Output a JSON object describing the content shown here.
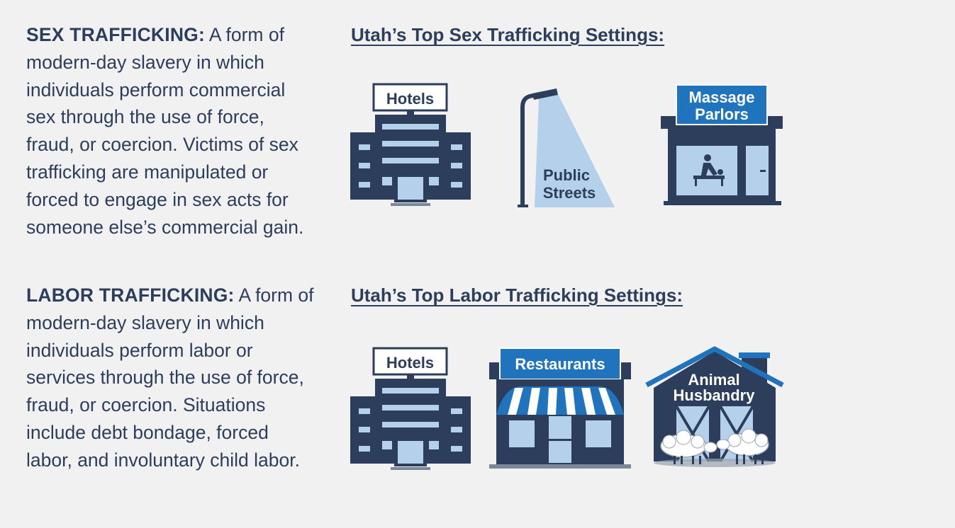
{
  "sex_trafficking": {
    "term": "SEX TRAFFICKING:",
    "definition": " A form of modern-day slavery in which individuals perform commercial sex through the use of force, fraud, or coercion. Victims of sex trafficking are manipulated or forced to engage in sex acts for someone else’s commercial gain.",
    "settings_heading": "Utah’s Top Sex Trafficking Settings:",
    "settings": {
      "hotels": "Hotels",
      "streets_line1": "Public",
      "streets_line2": "Streets",
      "massage_line1": "Massage",
      "massage_line2": "Parlors"
    }
  },
  "labor_trafficking": {
    "term": "LABOR TRAFFICKING:",
    "definition": " A form of modern-day slavery in which individuals perform labor or services through the use of force, fraud, or coercion. Situations include debt bondage, forced labor, and involuntary child labor.",
    "settings_heading": "Utah’s Top Labor Trafficking Settings:",
    "settings": {
      "hotels": "Hotels",
      "restaurants": "Restaurants",
      "animal_line1": "Animal",
      "animal_line2": "Husbandry"
    }
  },
  "colors": {
    "navy": "#2c3e5b",
    "light_blue": "#b5d0ea",
    "accent_blue": "#2073bd",
    "background": "#f1f1f1"
  }
}
